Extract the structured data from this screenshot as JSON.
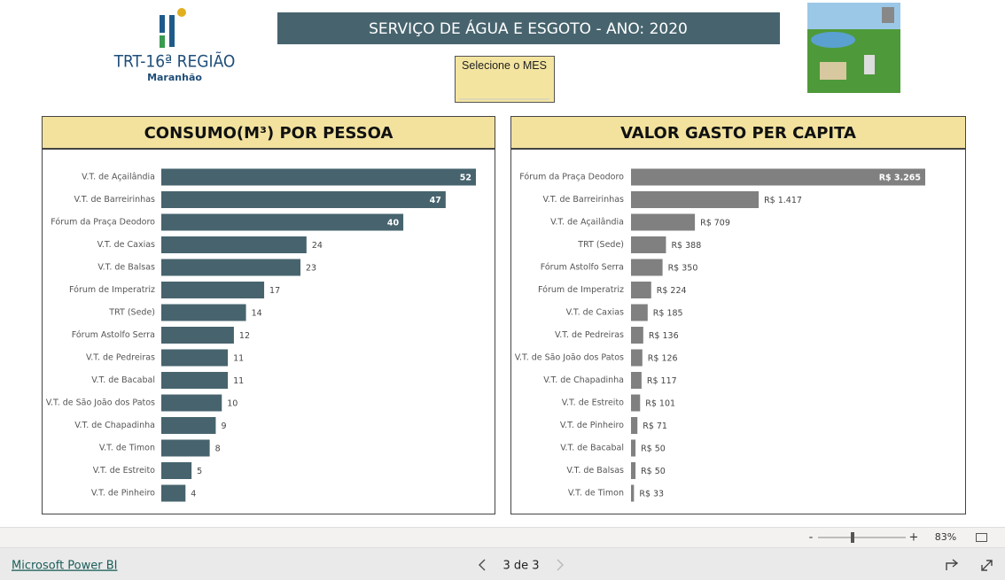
{
  "header": {
    "title": "SERVIÇO DE ÁGUA E ESGOTO - ANO: 2020",
    "logo_title": "TRT-16ª REGIÃO",
    "logo_subtitle": "Maranhão",
    "slicer_label": "Selecione o MES"
  },
  "chart_data": [
    {
      "type": "bar",
      "orientation": "horizontal",
      "title": "CONSUMO(M³) POR PESSOA",
      "color": "#47646e",
      "categories": [
        "V.T. de Açailândia",
        "V.T. de Barreirinhas",
        "Fórum da Praça Deodoro",
        "V.T. de Caxias",
        "V.T. de Balsas",
        "Fórum de Imperatriz",
        "TRT (Sede)",
        "Fórum Astolfo Serra",
        "V.T. de Pedreiras",
        "V.T. de Bacabal",
        "V.T. de São João dos Patos",
        "V.T. de Chapadinha",
        "V.T. de Timon",
        "V.T. de Estreito",
        "V.T. de Pinheiro"
      ],
      "values": [
        52,
        47,
        40,
        24,
        23,
        17,
        14,
        12,
        11,
        11,
        10,
        9,
        8,
        5,
        4
      ]
    },
    {
      "type": "bar",
      "orientation": "horizontal",
      "title": "VALOR GASTO PER CAPITA",
      "color": "#808080",
      "categories": [
        "Fórum da Praça Deodoro",
        "V.T. de Barreirinhas",
        "V.T. de Açailândia",
        "TRT (Sede)",
        "Fórum Astolfo Serra",
        "Fórum de Imperatriz",
        "V.T. de Caxias",
        "V.T. de Pedreiras",
        "V.T. de São João dos Patos",
        "V.T. de Chapadinha",
        "V.T. de Estreito",
        "V.T. de Pinheiro",
        "V.T. de Bacabal",
        "V.T. de Balsas",
        "V.T. de Timon"
      ],
      "values": [
        3265,
        1417,
        709,
        388,
        350,
        224,
        185,
        136,
        126,
        117,
        101,
        71,
        50,
        50,
        33
      ],
      "value_labels": [
        "R$ 3.265",
        "R$ 1.417",
        "R$ 709",
        "R$ 388",
        "R$ 350",
        "R$ 224",
        "R$ 185",
        "R$ 136",
        "R$ 126",
        "R$ 117",
        "R$ 101",
        "R$ 71",
        "R$ 50",
        "R$ 50",
        "R$ 33"
      ]
    }
  ],
  "footer": {
    "zoom_minus": "-",
    "zoom_plus": "+",
    "zoom": "83%",
    "brand": "Microsoft Power BI",
    "page": "3 de 3"
  }
}
